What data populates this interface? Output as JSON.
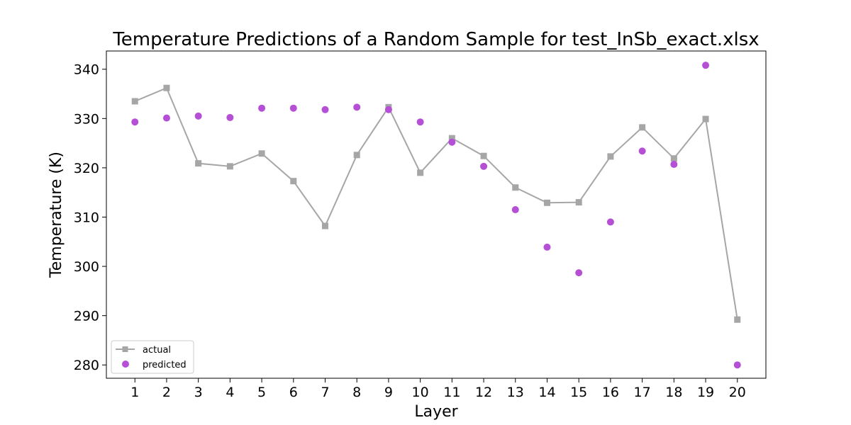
{
  "chart_data": {
    "type": "line",
    "title": "Temperature Predictions of a Random Sample for test_InSb_exact.xlsx",
    "xlabel": "Layer",
    "ylabel": "Temperature (K)",
    "x": [
      1,
      2,
      3,
      4,
      5,
      6,
      7,
      8,
      9,
      10,
      11,
      12,
      13,
      14,
      15,
      16,
      17,
      18,
      19,
      20
    ],
    "xlim": [
      0.1,
      20.9
    ],
    "ylim": [
      277.3,
      343.7
    ],
    "yticks": [
      280,
      290,
      300,
      310,
      320,
      330,
      340
    ],
    "grid": false,
    "legend_position": "lower-left",
    "series": [
      {
        "name": "actual",
        "style": "line-square",
        "color": "#a6a6a6",
        "values": [
          333.5,
          336.2,
          320.9,
          320.3,
          322.9,
          317.3,
          308.2,
          322.6,
          332.3,
          319.0,
          326.0,
          322.4,
          316.0,
          312.9,
          313.0,
          322.3,
          328.2,
          321.9,
          329.9,
          289.2
        ]
      },
      {
        "name": "predicted",
        "style": "scatter",
        "color": "#b44fd6",
        "values": [
          329.3,
          330.1,
          330.5,
          330.2,
          332.1,
          332.1,
          331.8,
          332.3,
          331.8,
          329.3,
          325.2,
          320.3,
          311.5,
          303.9,
          298.7,
          309.0,
          323.4,
          320.7,
          340.8,
          280.0
        ]
      }
    ]
  }
}
